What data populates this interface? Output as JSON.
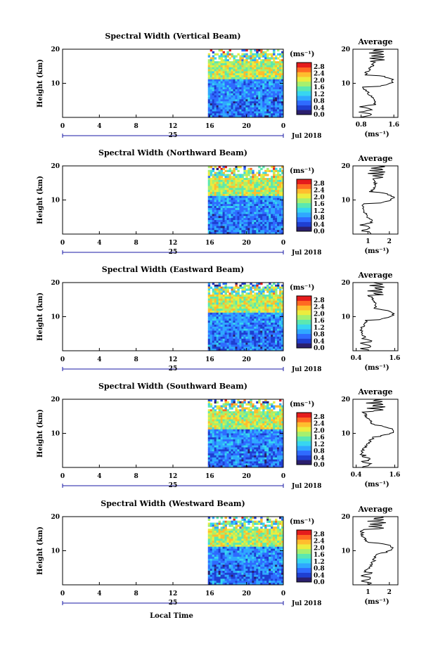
{
  "figure": {
    "x_axis_label": "Local Time",
    "date_label": "Jul 2018",
    "day_label": "25"
  },
  "chart_data": [
    {
      "type": "heatmap",
      "title": "Spectral Width (Vertical Beam)",
      "ylabel": "Height (km)",
      "yticks": [
        "20",
        "10"
      ],
      "xticks": [
        "0",
        "4",
        "8",
        "12",
        "16",
        "20",
        "0"
      ],
      "colorbar": {
        "unit": "(ms⁻¹)",
        "ticks": [
          "2.8",
          "2.4",
          "2.0",
          "1.6",
          "1.2",
          "0.8",
          "0.4",
          "0.0"
        ]
      },
      "average": {
        "title": "Average",
        "unit": "(ms⁻¹)",
        "xticks": [
          "0.8",
          "1.6"
        ],
        "xlim": [
          0.6,
          1.7
        ],
        "yticks": [
          "20",
          "10"
        ]
      },
      "data_start_hour": 15.8
    },
    {
      "type": "heatmap",
      "title": "Spectral Width (Northward Beam)",
      "ylabel": "Height (km)",
      "yticks": [
        "20",
        "10"
      ],
      "xticks": [
        "0",
        "4",
        "8",
        "12",
        "16",
        "20",
        "0"
      ],
      "colorbar": {
        "unit": "(ms⁻¹)",
        "ticks": [
          "2.8",
          "2.4",
          "2.0",
          "1.6",
          "1.2",
          "0.8",
          "0.4",
          "0.0"
        ]
      },
      "average": {
        "title": "Average",
        "unit": "(ms⁻¹)",
        "xticks": [
          "1",
          "2"
        ],
        "xlim": [
          0.3,
          2.4
        ],
        "yticks": [
          "20",
          "10"
        ]
      },
      "data_start_hour": 15.8
    },
    {
      "type": "heatmap",
      "title": "Spectral Width (Eastward Beam)",
      "ylabel": "Height (km)",
      "yticks": [
        "20",
        "10"
      ],
      "xticks": [
        "0",
        "4",
        "8",
        "12",
        "16",
        "20",
        "0"
      ],
      "colorbar": {
        "unit": "(ms⁻¹)",
        "ticks": [
          "2.8",
          "2.4",
          "2.0",
          "1.6",
          "1.2",
          "0.8",
          "0.4",
          "0.0"
        ]
      },
      "average": {
        "title": "Average",
        "unit": "(ms⁻¹)",
        "xticks": [
          "0.4",
          "1.6"
        ],
        "xlim": [
          0.3,
          1.7
        ],
        "yticks": [
          "20",
          "10"
        ]
      },
      "data_start_hour": 15.8
    },
    {
      "type": "heatmap",
      "title": "Spectral Width (Southward Beam)",
      "ylabel": "Height (km)",
      "yticks": [
        "20",
        "10"
      ],
      "xticks": [
        "0",
        "4",
        "8",
        "12",
        "16",
        "20",
        "0"
      ],
      "colorbar": {
        "unit": "(ms⁻¹)",
        "ticks": [
          "2.8",
          "2.4",
          "2.0",
          "1.6",
          "1.2",
          "0.8",
          "0.4",
          "0.0"
        ]
      },
      "average": {
        "title": "Average",
        "unit": "(ms⁻¹)",
        "xticks": [
          "0.4",
          "1.6"
        ],
        "xlim": [
          0.3,
          1.7
        ],
        "yticks": [
          "20",
          "10"
        ]
      },
      "data_start_hour": 15.8
    },
    {
      "type": "heatmap",
      "title": "Spectral Width (Westward Beam)",
      "ylabel": "Height (km)",
      "yticks": [
        "20",
        "10"
      ],
      "xticks": [
        "0",
        "4",
        "8",
        "12",
        "16",
        "20",
        "0"
      ],
      "colorbar": {
        "unit": "(ms⁻¹)",
        "ticks": [
          "2.8",
          "2.4",
          "2.0",
          "1.6",
          "1.2",
          "0.8",
          "0.4",
          "0.0"
        ]
      },
      "average": {
        "title": "Average",
        "unit": "(ms⁻¹)",
        "xticks": [
          "1",
          "2"
        ],
        "xlim": [
          0.3,
          2.4
        ],
        "yticks": [
          "20",
          "10"
        ]
      },
      "data_start_hour": 15.8
    }
  ],
  "colors": {
    "colormap": [
      "#2b1f6e",
      "#1f3fd1",
      "#2f6bff",
      "#2fa8ff",
      "#37d6f0",
      "#5be8b0",
      "#a6f06e",
      "#ecec3e",
      "#ffbd2e",
      "#ff6a22",
      "#e51c1c"
    ],
    "axis": "#000000",
    "accent": "#1a1aa6"
  }
}
